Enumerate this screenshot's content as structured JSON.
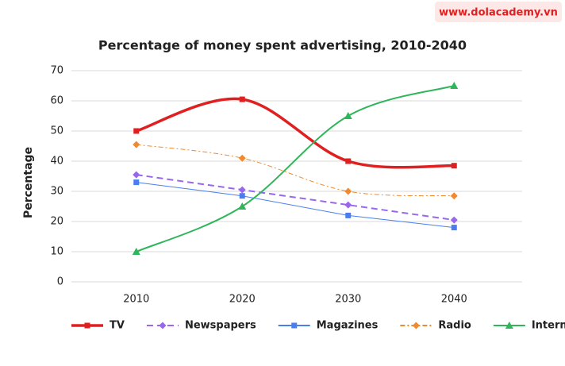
{
  "watermark": "www.dolacademy.vn",
  "chart_data": {
    "type": "line",
    "title": "Percentage of money spent advertising, 2010-2040",
    "y_label": "Percentage",
    "categories": [
      "2010",
      "2020",
      "2030",
      "2040"
    ],
    "ylim": [
      0,
      70
    ],
    "yticks": [
      0,
      10,
      20,
      30,
      40,
      50,
      60,
      70
    ],
    "grid": true,
    "legend": "bottom",
    "series": [
      {
        "name": "TV",
        "color": "#e02020",
        "values": [
          50,
          60.5,
          40,
          38.5
        ],
        "marker": "square",
        "dash": "solid",
        "width": 3.5,
        "smooth": true
      },
      {
        "name": "Newspapers",
        "color": "#9966ee",
        "values": [
          35.5,
          30.5,
          25.5,
          20.5
        ],
        "marker": "diamond",
        "dash": "dashed",
        "width": 2,
        "smooth": false
      },
      {
        "name": "Magazines",
        "color": "#4a7ef0",
        "values": [
          33,
          28.5,
          22,
          18
        ],
        "marker": "square",
        "dash": "solid",
        "width": 1,
        "smooth": false
      },
      {
        "name": "Radio",
        "color": "#f08a30",
        "values": [
          45.5,
          41,
          30,
          28.5
        ],
        "marker": "diamond",
        "dash": "dashdot",
        "width": 1,
        "smooth": true
      },
      {
        "name": "Internet",
        "color": "#2fb55a",
        "values": [
          10,
          25,
          55,
          65
        ],
        "marker": "triangle",
        "dash": "solid",
        "width": 2,
        "smooth": true
      }
    ]
  }
}
